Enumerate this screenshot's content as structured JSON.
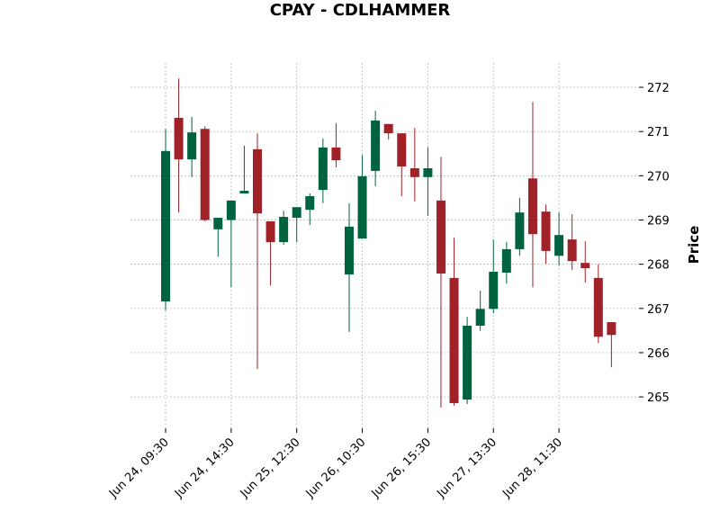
{
  "chart_data": {
    "type": "candlestick",
    "title": "CPAY - CDLHAMMER",
    "y_label": "Price",
    "categories": [
      "Jun 24, 09:30",
      null,
      null,
      null,
      null,
      "Jun 24, 14:30",
      null,
      null,
      null,
      null,
      "Jun 25, 12:30",
      null,
      null,
      null,
      null,
      "Jun 26, 10:30",
      null,
      null,
      null,
      null,
      "Jun 26, 15:30",
      null,
      null,
      null,
      null,
      "Jun 27, 13:30",
      null,
      null,
      null,
      null,
      "Jun 28, 11:30",
      null,
      null,
      null,
      null
    ],
    "open": [
      267.16,
      271.31,
      270.37,
      271.06,
      268.79,
      269.0,
      269.6,
      270.6,
      268.97,
      268.5,
      269.05,
      269.23,
      269.68,
      270.64,
      267.77,
      268.58,
      270.11,
      271.17,
      270.96,
      270.17,
      269.97,
      269.44,
      267.69,
      264.94,
      266.61,
      266.99,
      267.81,
      268.34,
      269.94,
      269.19,
      268.19,
      268.56,
      268.03,
      267.69,
      266.69
    ],
    "high": [
      271.06,
      272.2,
      271.33,
      271.12,
      269.05,
      269.44,
      270.68,
      270.96,
      268.97,
      269.21,
      269.29,
      269.6,
      270.84,
      271.19,
      269.38,
      270.47,
      271.47,
      271.17,
      270.96,
      271.08,
      270.64,
      270.43,
      268.6,
      266.81,
      267.4,
      268.56,
      268.5,
      269.5,
      271.67,
      269.35,
      269.17,
      269.13,
      268.52,
      268.0,
      266.69
    ],
    "low": [
      266.95,
      269.17,
      269.97,
      268.97,
      268.17,
      267.48,
      269.6,
      265.63,
      267.52,
      268.44,
      268.5,
      268.89,
      269.38,
      270.19,
      266.47,
      268.58,
      269.76,
      270.82,
      269.54,
      269.42,
      269.09,
      264.76,
      264.8,
      264.84,
      266.49,
      266.89,
      267.56,
      268.19,
      267.48,
      268.01,
      267.97,
      267.87,
      267.58,
      266.22,
      265.67
    ],
    "close": [
      270.56,
      270.37,
      270.98,
      269.0,
      269.05,
      269.44,
      269.66,
      269.15,
      268.5,
      269.07,
      269.29,
      269.54,
      270.64,
      270.35,
      268.85,
      269.99,
      271.25,
      270.96,
      270.21,
      269.97,
      270.17,
      267.79,
      264.86,
      266.61,
      266.99,
      267.83,
      268.34,
      269.17,
      268.68,
      268.3,
      268.66,
      268.07,
      267.91,
      266.36,
      266.4
    ],
    "up_color": "#006340",
    "down_color": "#a02128",
    "ylim": [
      264.29,
      272.55
    ],
    "yticks": [
      265,
      266,
      267,
      268,
      269,
      270,
      271,
      272
    ],
    "grid": true
  }
}
